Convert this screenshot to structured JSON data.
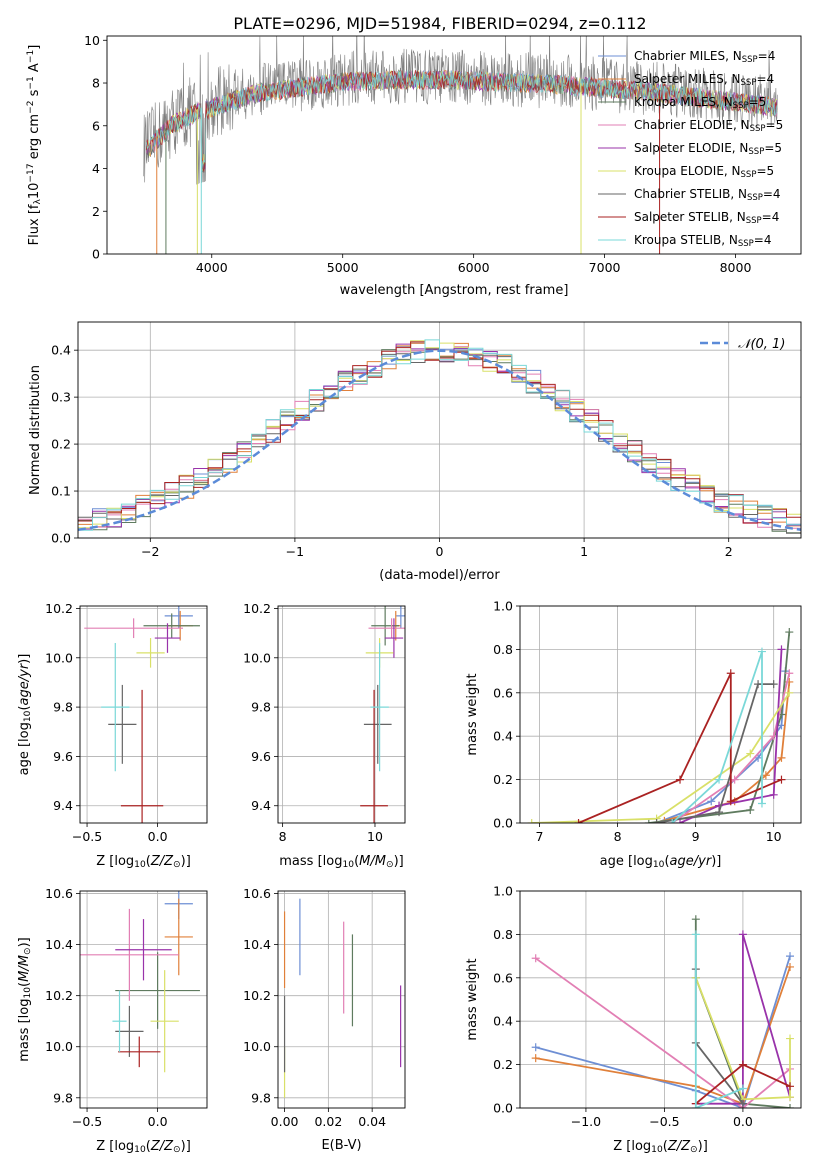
{
  "title": "PLATE=0296, MJD=51984, FIBERID=0294, z=0.112",
  "colors": {
    "palette": [
      "#6e8fd4",
      "#e0803a",
      "#5f7b5f",
      "#e27fb4",
      "#9933aa",
      "#d9e068",
      "#666666",
      "#aa2222",
      "#7ad8d8"
    ],
    "gray": "#808080",
    "norm": "#5b8bd8",
    "grid": "#b0b0b0"
  },
  "chart_data": [
    {
      "id": "spectrum",
      "type": "line",
      "xlabel": "wavelength [Angstrom, rest frame]",
      "ylabel": "Flux [f_λ 10^-17 erg cm^-2 s^-1 A^-1]",
      "xlim": [
        3200,
        8500
      ],
      "ylim": [
        0,
        10.2
      ],
      "xticks": [
        "4000",
        "5000",
        "6000",
        "7000",
        "8000"
      ],
      "yticks": [
        "0",
        "2",
        "4",
        "6",
        "8",
        "10"
      ],
      "grid": false,
      "legend_position": "right",
      "envelope_x": [
        3500,
        3700,
        3900,
        4100,
        4300,
        4600,
        5000,
        5400,
        5800,
        6200,
        6600,
        7000,
        7400,
        7800,
        8200,
        8300
      ],
      "envelope_y": [
        5.0,
        6.2,
        6.8,
        7.2,
        7.6,
        7.9,
        8.2,
        8.3,
        8.3,
        8.2,
        8.1,
        7.9,
        7.7,
        7.4,
        7.1,
        7.0
      ],
      "legend": [
        {
          "model": "Chabrier MILES",
          "nssp": "4"
        },
        {
          "model": "Salpeter MILES",
          "nssp": "4"
        },
        {
          "model": "Kroupa MILES",
          "nssp": "5"
        },
        {
          "model": "Chabrier ELODIE",
          "nssp": "5"
        },
        {
          "model": "Salpeter ELODIE",
          "nssp": "5"
        },
        {
          "model": "Kroupa ELODIE",
          "nssp": "5"
        },
        {
          "model": "Chabrier STELIB",
          "nssp": "4"
        },
        {
          "model": "Salpeter STELIB",
          "nssp": "4"
        },
        {
          "model": "Kroupa STELIB",
          "nssp": "4"
        }
      ]
    },
    {
      "id": "residuals",
      "type": "line",
      "xlabel": "(data-model)/error",
      "ylabel": "Normed distribution",
      "xlim": [
        -2.5,
        2.5
      ],
      "ylim": [
        0,
        0.46
      ],
      "xticks": [
        "−2",
        "−1",
        "0",
        "1",
        "2"
      ],
      "yticks": [
        "0.0",
        "0.1",
        "0.2",
        "0.3",
        "0.4"
      ],
      "grid": true,
      "legend_position": "top-right",
      "legend_label": "𝒩(0, 1)",
      "normal": {
        "mean": 0,
        "sigma": 1
      }
    },
    {
      "id": "age_vs_Z",
      "type": "scatter",
      "xlabel": "Z [log10(Z/Z⊙)]",
      "ylabel": "age  [log10(age/yr)]",
      "xlim": [
        -0.55,
        0.35
      ],
      "ylim": [
        9.33,
        10.21
      ],
      "xticks": [
        "−0.5",
        "0.0"
      ],
      "yticks": [
        "9.4",
        "9.6",
        "9.8",
        "10.0",
        "10.2"
      ],
      "grid": true,
      "points": [
        {
          "x": 0.15,
          "y": 10.17,
          "xerr": 0.1,
          "yerr": 0.05
        },
        {
          "x": 0.16,
          "y": 10.13,
          "xerr": 0.09,
          "yerr": 0.06
        },
        {
          "x": 0.1,
          "y": 10.13,
          "xerr": 0.2,
          "yerr": 0.05
        },
        {
          "x": -0.17,
          "y": 10.12,
          "xerr": 0.35,
          "yerr": 0.04
        },
        {
          "x": 0.07,
          "y": 10.08,
          "xerr": 0.09,
          "yerr": 0.06
        },
        {
          "x": -0.05,
          "y": 10.02,
          "xerr": 0.1,
          "yerr": 0.06
        },
        {
          "x": -0.25,
          "y": 9.73,
          "xerr": 0.1,
          "yerr": 0.16
        },
        {
          "x": -0.11,
          "y": 9.4,
          "xerr": 0.15,
          "yerr": 0.47
        },
        {
          "x": -0.3,
          "y": 9.8,
          "xerr": 0.1,
          "yerr": 0.26
        }
      ]
    },
    {
      "id": "age_vs_mass",
      "type": "scatter",
      "xlabel": "mass [log10(M/M⊙)]",
      "ylabel": "",
      "xlim": [
        7.9,
        10.65
      ],
      "ylim": [
        9.33,
        10.21
      ],
      "xticks": [
        "8",
        "10"
      ],
      "yticks": [
        "9.4",
        "9.6",
        "9.8",
        "10.0",
        "10.2"
      ],
      "grid": true,
      "points": [
        {
          "x": 10.56,
          "y": 10.17,
          "xerr": 0.1,
          "yerr": 0.05
        },
        {
          "x": 10.45,
          "y": 10.13,
          "xerr": 0.1,
          "yerr": 0.06
        },
        {
          "x": 10.22,
          "y": 10.13,
          "xerr": 0.3,
          "yerr": 0.08
        },
        {
          "x": 10.36,
          "y": 10.12,
          "xerr": 0.5,
          "yerr": 0.04
        },
        {
          "x": 10.41,
          "y": 10.08,
          "xerr": 0.2,
          "yerr": 0.08
        },
        {
          "x": 10.1,
          "y": 10.02,
          "xerr": 0.3,
          "yerr": 0.06
        },
        {
          "x": 10.06,
          "y": 9.73,
          "xerr": 0.3,
          "yerr": 0.16
        },
        {
          "x": 9.98,
          "y": 9.4,
          "xerr": 0.3,
          "yerr": 0.47
        },
        {
          "x": 10.1,
          "y": 9.8,
          "xerr": 0.2,
          "yerr": 0.26
        }
      ]
    },
    {
      "id": "weight_vs_age",
      "type": "line",
      "xlabel": "age  [log10(age/yr)]",
      "ylabel": "mass weight",
      "xlim": [
        6.75,
        10.35
      ],
      "ylim": [
        0,
        1.0
      ],
      "xticks": [
        "7",
        "8",
        "9",
        "10"
      ],
      "yticks": [
        "0.0",
        "0.2",
        "0.4",
        "0.6",
        "0.8",
        "1.0"
      ],
      "grid": true,
      "series": [
        {
          "x": [
            8.5,
            9.2,
            9.8,
            10.1,
            10.15
          ],
          "y": [
            0.0,
            0.1,
            0.3,
            0.45,
            0.7
          ]
        },
        {
          "x": [
            8.6,
            9.5,
            9.9,
            10.1,
            10.2
          ],
          "y": [
            0.01,
            0.1,
            0.22,
            0.3,
            0.65
          ]
        },
        {
          "x": [
            8.4,
            9.7,
            10.1,
            10.2
          ],
          "y": [
            0.0,
            0.06,
            0.5,
            0.88
          ]
        },
        {
          "x": [
            8.7,
            9.5,
            10.0,
            10.2
          ],
          "y": [
            0.0,
            0.2,
            0.4,
            0.69
          ]
        },
        {
          "x": [
            8.8,
            9.3,
            10.0,
            10.1
          ],
          "y": [
            0.0,
            0.08,
            0.13,
            0.8
          ]
        },
        {
          "x": [
            6.9,
            8.5,
            9.7,
            10.2
          ],
          "y": [
            0.0,
            0.02,
            0.32,
            0.6
          ]
        },
        {
          "x": [
            8.5,
            9.3,
            9.8,
            10.0
          ],
          "y": [
            0.0,
            0.05,
            0.64,
            0.64
          ]
        },
        {
          "x": [
            7.5,
            8.8,
            9.45,
            9.45,
            10.1
          ],
          "y": [
            0.0,
            0.2,
            0.69,
            0.1,
            0.2
          ]
        },
        {
          "x": [
            8.7,
            9.3,
            9.85,
            9.85
          ],
          "y": [
            0.0,
            0.2,
            0.79,
            0.09
          ]
        }
      ]
    },
    {
      "id": "mass_vs_Z",
      "type": "scatter",
      "xlabel": "Z [log10(Z/Z⊙)]",
      "ylabel": "mass [log10(M/M⊙)]",
      "xlim": [
        -0.55,
        0.35
      ],
      "ylim": [
        9.76,
        10.61
      ],
      "xticks": [
        "−0.5",
        "0.0"
      ],
      "yticks": [
        "9.8",
        "10.0",
        "10.2",
        "10.4",
        "10.6"
      ],
      "grid": true,
      "points": [
        {
          "x": 0.15,
          "y": 10.56,
          "xerr": 0.1,
          "yerr": 0.06
        },
        {
          "x": 0.15,
          "y": 10.43,
          "xerr": 0.1,
          "yerr": 0.15
        },
        {
          "x": 0.0,
          "y": 10.22,
          "xerr": 0.3,
          "yerr": 0.15
        },
        {
          "x": -0.2,
          "y": 10.36,
          "xerr": 0.35,
          "yerr": 0.18
        },
        {
          "x": -0.1,
          "y": 10.38,
          "xerr": 0.2,
          "yerr": 0.12
        },
        {
          "x": 0.05,
          "y": 10.1,
          "xerr": 0.1,
          "yerr": 0.2
        },
        {
          "x": -0.2,
          "y": 10.06,
          "xerr": 0.1,
          "yerr": 0.1
        },
        {
          "x": -0.13,
          "y": 9.98,
          "xerr": 0.15,
          "yerr": 0.06
        },
        {
          "x": -0.27,
          "y": 10.1,
          "xerr": 0.05,
          "yerr": 0.12
        }
      ]
    },
    {
      "id": "mass_vs_ebv",
      "type": "scatter",
      "xlabel": "E(B-V)",
      "ylabel": "",
      "xlim": [
        -0.003,
        0.055
      ],
      "ylim": [
        9.76,
        10.61
      ],
      "xticks": [
        "0.00",
        "0.02",
        "0.04"
      ],
      "yticks": [
        "9.8",
        "10.0",
        "10.2",
        "10.4",
        "10.6"
      ],
      "grid": true,
      "points": [
        {
          "x": 0.007,
          "y": 10.43,
          "yerr": 0.15
        },
        {
          "x": 0.0,
          "y": 10.38,
          "yerr": 0.15
        },
        {
          "x": 0.031,
          "y": 10.26,
          "yerr": 0.18
        },
        {
          "x": 0.027,
          "y": 10.31,
          "yerr": 0.18
        },
        {
          "x": 0.053,
          "y": 10.08,
          "yerr": 0.16
        },
        {
          "x": 0.0,
          "y": 9.9,
          "yerr": 0.1
        },
        {
          "x": 0.0,
          "y": 10.05,
          "yerr": 0.15
        }
      ]
    },
    {
      "id": "weight_vs_Z",
      "type": "line",
      "xlabel": "Z [log10(Z/Z⊙)]",
      "ylabel": "mass weight",
      "xlim": [
        -1.42,
        0.37
      ],
      "ylim": [
        0,
        1.0
      ],
      "xticks": [
        "−1.0",
        "−0.5",
        "0.0"
      ],
      "yticks": [
        "0.0",
        "0.2",
        "0.4",
        "0.6",
        "0.8",
        "1.0"
      ],
      "grid": true,
      "series": [
        {
          "x": [
            -1.32,
            -0.3,
            0.0,
            0.3
          ],
          "y": [
            0.28,
            0.08,
            0.0,
            0.7
          ]
        },
        {
          "x": [
            -1.32,
            -0.3,
            0.0,
            0.3
          ],
          "y": [
            0.23,
            0.1,
            0.02,
            0.65
          ]
        },
        {
          "x": [
            -0.3,
            -0.3,
            0.0,
            0.3
          ],
          "y": [
            0.87,
            0.6,
            0.02,
            0.0
          ]
        },
        {
          "x": [
            -1.32,
            0.0,
            0.3
          ],
          "y": [
            0.69,
            0.0,
            0.18
          ]
        },
        {
          "x": [
            -0.3,
            0.0,
            0.0,
            0.3
          ],
          "y": [
            0.02,
            0.02,
            0.8,
            0.05
          ]
        },
        {
          "x": [
            -0.3,
            0.0,
            0.3,
            0.3
          ],
          "y": [
            0.6,
            0.04,
            0.05,
            0.32
          ]
        },
        {
          "x": [
            -0.3,
            -0.3,
            0.0
          ],
          "y": [
            0.64,
            0.3,
            0.02
          ]
        },
        {
          "x": [
            -0.3,
            0.0,
            0.3
          ],
          "y": [
            0.02,
            0.2,
            0.1
          ]
        },
        {
          "x": [
            -0.3,
            -0.3,
            0.0
          ],
          "y": [
            0.8,
            0.0,
            0.09
          ]
        }
      ]
    }
  ]
}
